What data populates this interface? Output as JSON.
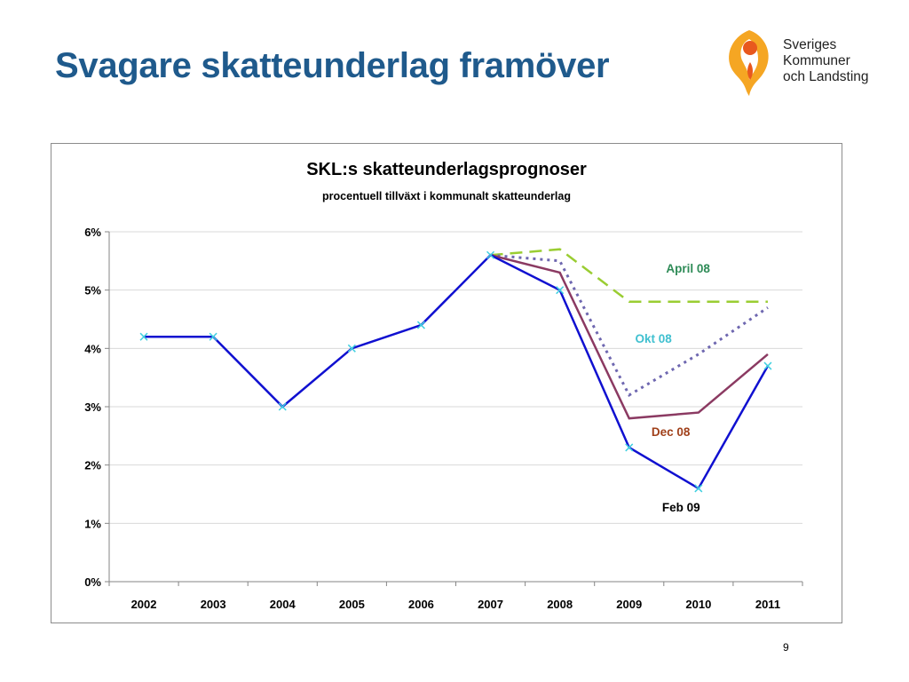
{
  "slide": {
    "title": "Svagare skatteunderlag framöver",
    "page_number": "9"
  },
  "logo": {
    "line1": "Sveriges",
    "line2": "Kommuner",
    "line3": "och Landsting",
    "colors": {
      "orange": "#f5a623",
      "red": "#e8581e"
    }
  },
  "chart_data": {
    "type": "line",
    "title": "SKL:s skatteunderlagsprognoser",
    "subtitle": "procentuell tillväxt i kommunalt skatteunderlag",
    "xlabel": "",
    "ylabel": "",
    "categories": [
      "2002",
      "2003",
      "2004",
      "2005",
      "2006",
      "2007",
      "2008",
      "2009",
      "2010",
      "2011"
    ],
    "ylim": [
      0,
      6
    ],
    "yticks": [
      0,
      1,
      2,
      3,
      4,
      5,
      6
    ],
    "ytick_labels": [
      "0%",
      "1%",
      "2%",
      "3%",
      "4%",
      "5%",
      "6%"
    ],
    "grid": true,
    "series": [
      {
        "name": "April 08",
        "color": "#9acd32",
        "style": "dashed",
        "values": [
          null,
          null,
          null,
          null,
          null,
          5.6,
          5.7,
          4.8,
          4.8,
          4.8
        ]
      },
      {
        "name": "Okt 08",
        "color": "#6e67b0",
        "style": "dotted",
        "values": [
          null,
          null,
          null,
          null,
          null,
          5.6,
          5.5,
          3.2,
          3.9,
          4.7
        ]
      },
      {
        "name": "Dec 08",
        "color": "#8b3a62",
        "style": "solid",
        "values": [
          null,
          null,
          null,
          null,
          null,
          5.6,
          5.3,
          2.8,
          2.9,
          3.9
        ]
      },
      {
        "name": "Feb 09",
        "color": "#1010d0",
        "style": "solid",
        "markers": true,
        "values": [
          4.2,
          4.2,
          3.0,
          4.0,
          4.4,
          5.6,
          5.0,
          2.3,
          1.6,
          3.7
        ]
      }
    ],
    "annotations": [
      {
        "text": "April 08",
        "color": "#2e8b57",
        "series": "April 08"
      },
      {
        "text": "Okt 08",
        "color": "#40c0d0",
        "series": "Okt 08"
      },
      {
        "text": "Dec 08",
        "color": "#a0401a",
        "series": "Dec 08"
      },
      {
        "text": "Feb 09",
        "color": "#000000",
        "series": "Feb 09"
      }
    ]
  }
}
